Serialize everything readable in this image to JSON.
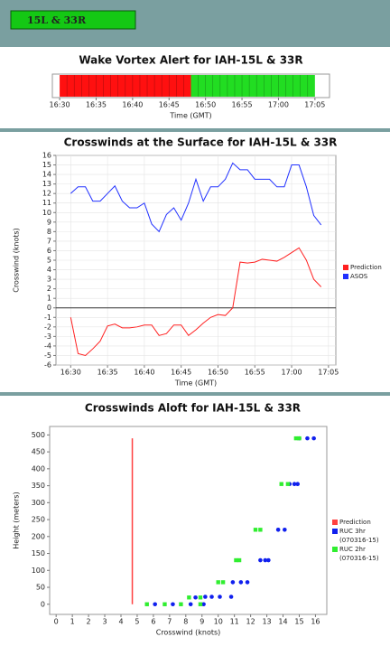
{
  "header": {
    "tab": "15L & 33R"
  },
  "chart_data": [
    {
      "type": "timeline",
      "title": "Wake Vortex Alert for IAH-15L & 33R",
      "xlabel": "Time (GMT)",
      "xlim": [
        "16:29",
        "17:07"
      ],
      "xticks": [
        "16:30",
        "16:35",
        "16:40",
        "16:45",
        "16:50",
        "16:55",
        "17:00",
        "17:05"
      ],
      "segments": [
        {
          "start": "16:30",
          "end": "16:48",
          "color": "#ff1010"
        },
        {
          "start": "16:48",
          "end": "17:05",
          "color": "#22dd22"
        }
      ]
    },
    {
      "type": "line",
      "title": "Crosswinds at the Surface for IAH-15L & 33R",
      "xlabel": "Time (GMT)",
      "ylabel": "Crosswind (knots)",
      "xlim": [
        "16:28",
        "17:06"
      ],
      "ylim": [
        -6,
        16
      ],
      "xticks": [
        "16:30",
        "16:35",
        "16:40",
        "16:45",
        "16:50",
        "16:55",
        "17:00",
        "17:05"
      ],
      "yticks": [
        -6,
        -5,
        -4,
        -3,
        -2,
        -1,
        0,
        1,
        2,
        3,
        4,
        5,
        6,
        7,
        8,
        9,
        10,
        11,
        12,
        13,
        14,
        15,
        16
      ],
      "grid": true,
      "zero_line": true,
      "x": [
        "16:30",
        "16:31",
        "16:32",
        "16:33",
        "16:34",
        "16:35",
        "16:36",
        "16:37",
        "16:38",
        "16:39",
        "16:40",
        "16:41",
        "16:42",
        "16:43",
        "16:44",
        "16:45",
        "16:46",
        "16:47",
        "16:48",
        "16:49",
        "16:50",
        "16:51",
        "16:52",
        "16:53",
        "16:54",
        "16:55",
        "16:56",
        "16:57",
        "16:58",
        "16:59",
        "17:00",
        "17:01",
        "17:02",
        "17:03",
        "17:04"
      ],
      "series": [
        {
          "name": "Prediction",
          "color": "#ff2020",
          "values": [
            -1,
            -4.8,
            -5,
            -4.3,
            -3.5,
            -1.9,
            -1.7,
            -2.1,
            -2.1,
            -2,
            -1.8,
            -1.8,
            -2.9,
            -2.7,
            -1.8,
            -1.8,
            -2.9,
            -2.3,
            -1.6,
            -1,
            -0.7,
            -0.8,
            0,
            4.8,
            4.7,
            4.8,
            5.1,
            5,
            4.9,
            5.3,
            5.8,
            6.3,
            5,
            3,
            2.2
          ]
        },
        {
          "name": "ASOS",
          "color": "#2030ff",
          "values": [
            12,
            12.7,
            12.7,
            11.2,
            11.2,
            12,
            12.8,
            11.2,
            10.5,
            10.5,
            11,
            8.8,
            8,
            9.8,
            10.5,
            9.2,
            11,
            13.5,
            11.2,
            12.7,
            12.7,
            13.5,
            15.2,
            14.5,
            14.5,
            13.5,
            13.5,
            13.5,
            12.7,
            12.7,
            15,
            15,
            12.7,
            9.7,
            8.7
          ]
        }
      ]
    },
    {
      "type": "scatter",
      "title": "Crosswinds Aloft for IAH-15L & 33R",
      "xlabel": "Crosswind (knots)",
      "ylabel": "Height (meters)",
      "xlim": [
        -0.4,
        16.7
      ],
      "ylim": [
        -30,
        525
      ],
      "xticks": [
        0,
        1,
        2,
        3,
        4,
        5,
        6,
        7,
        8,
        9,
        10,
        11,
        12,
        13,
        14,
        15,
        16
      ],
      "yticks": [
        0,
        50,
        100,
        150,
        200,
        250,
        300,
        350,
        400,
        450,
        500
      ],
      "series": [
        {
          "name": "Prediction",
          "color": "#ff4040",
          "marker": "line",
          "x": [
            4.7,
            4.7
          ],
          "values": [
            0,
            490
          ]
        },
        {
          "name": "RUC 3hr",
          "name_note": "(070316-15)",
          "color": "#1020ee",
          "marker": "circle",
          "x": [
            6.1,
            7.2,
            8.3,
            9.1,
            8.6,
            9.2,
            9.6,
            10.1,
            10.8,
            10.9,
            11.4,
            11.8,
            12.6,
            12.9,
            13.1,
            13.7,
            14.1,
            14.4,
            14.7,
            14.9,
            15.0,
            15.5,
            15.9
          ],
          "values": [
            0,
            0,
            0,
            0,
            20,
            22,
            22,
            22,
            22,
            65,
            65,
            65,
            130,
            130,
            130,
            220,
            220,
            355,
            355,
            355,
            490,
            490,
            490
          ]
        },
        {
          "name": "RUC 2hr",
          "name_note": "(070316-15)",
          "color": "#30ee30",
          "marker": "square",
          "x": [
            5.6,
            6.7,
            7.7,
            8.9,
            8.2,
            8.9,
            10.0,
            10.3,
            11.1,
            11.3,
            12.3,
            12.6,
            13.9,
            14.3,
            14.8,
            15.0
          ],
          "values": [
            0,
            0,
            0,
            0,
            20,
            20,
            65,
            65,
            130,
            130,
            220,
            220,
            355,
            355,
            490,
            490
          ]
        }
      ]
    }
  ]
}
